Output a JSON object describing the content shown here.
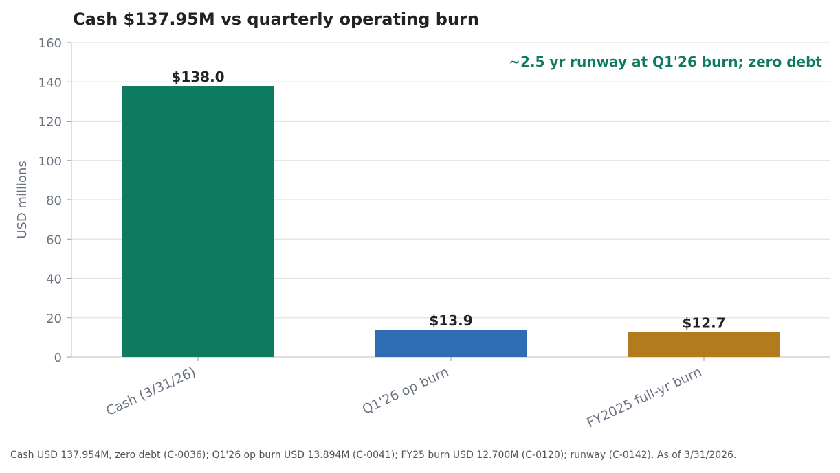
{
  "chart_data": {
    "type": "bar",
    "title": "Cash $137.95M vs quarterly operating burn",
    "ylabel": "USD millions",
    "xlabel": "",
    "ylim": [
      0,
      160
    ],
    "yticks": [
      0,
      20,
      40,
      60,
      80,
      100,
      120,
      140,
      160
    ],
    "grid": true,
    "categories": [
      "Cash (3/31/26)",
      "Q1'26 op burn",
      "FY2025 full-yr burn"
    ],
    "values": [
      137.954,
      13.894,
      12.7
    ],
    "data_labels": [
      "$138.0",
      "$13.9",
      "$12.7"
    ],
    "colors": [
      "#0e7a62",
      "#2e6db4",
      "#b27b1e"
    ],
    "annotation": "~2.5 yr runway at Q1'26 burn; zero debt",
    "annotation_color": "#0e7a62"
  },
  "footnote": "Cash USD 137.954M, zero debt (C-0036); Q1'26 op burn USD 13.894M (C-0041); FY25 burn USD 12.700M (C-0120); runway (C-0142). As of 3/31/2026."
}
